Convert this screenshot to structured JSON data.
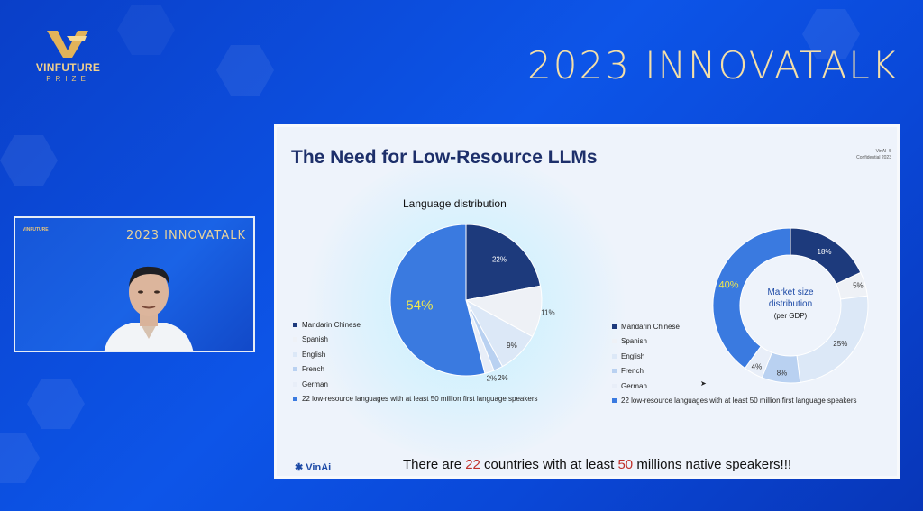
{
  "brand": {
    "name": "VINFUTURE",
    "sub": "PRIZE"
  },
  "event_title": "2023 INNOVATALK",
  "pip": {
    "title": "2023 INNOVATALK",
    "logo": "VINFUTURE"
  },
  "slide": {
    "title": "The Need for Low-Resource LLMs",
    "meta_brand": "VinAI",
    "page": "5",
    "meta_confidential": "Confidential 2023",
    "footer_pre": "There are ",
    "footer_n1": "22",
    "footer_mid": " countries with at least ",
    "footer_n2": "50",
    "footer_post": " millions native speakers!!!",
    "vinai_logo": "VinAi"
  },
  "colors": {
    "c1": "#1d3a7c",
    "c2": "#eef1f6",
    "c3": "#dce8f7",
    "c4": "#b9d1f1",
    "c5": "#e8eef8",
    "c6": "#3a7ae0"
  },
  "chart_data": [
    {
      "type": "pie",
      "title": "Language distribution",
      "categories": [
        "Mandarin Chinese",
        "Spanish",
        "English",
        "French",
        "German",
        "22 low-resource languages with at least 50 million first language speakers"
      ],
      "values": [
        22,
        11,
        9,
        2,
        2,
        54
      ],
      "labels": [
        "22%",
        "11%",
        "9%",
        "2%",
        "2%",
        "54%"
      ]
    },
    {
      "type": "pie",
      "subtype": "donut",
      "title": "Market size distribution",
      "subtitle": "(per GDP)",
      "categories": [
        "Mandarin Chinese",
        "Spanish",
        "English",
        "French",
        "German",
        "22 low-resource languages with at least 50 million first language speakers"
      ],
      "values": [
        18,
        5,
        25,
        8,
        4,
        40
      ],
      "labels": [
        "18%",
        "5%",
        "25%",
        "8%",
        "4%",
        "40%"
      ]
    }
  ]
}
